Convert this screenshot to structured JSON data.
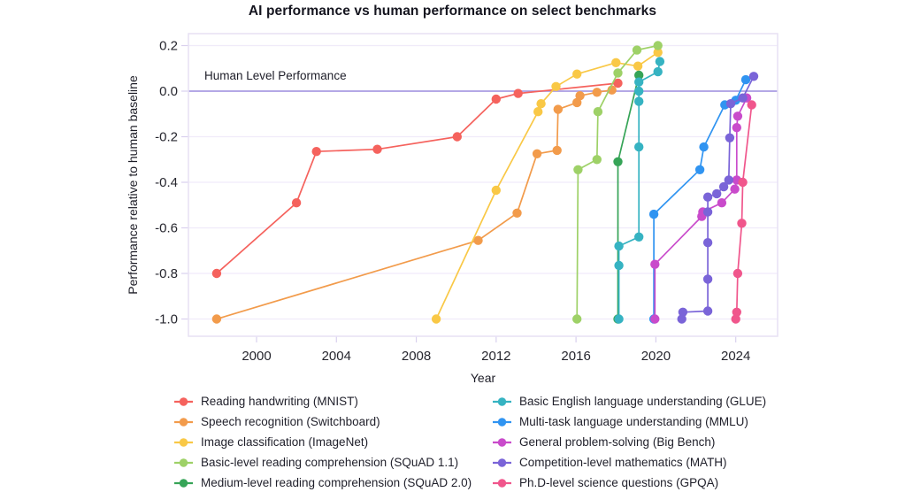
{
  "chart_data": {
    "type": "line",
    "title": "AI performance vs human performance on select benchmarks",
    "xlabel": "Year",
    "ylabel": "Performance relative to human baseline",
    "annotation": "Human Level Performance",
    "x_ticks": [
      2000,
      2004,
      2008,
      2012,
      2016,
      2020,
      2024
    ],
    "y_ticks": [
      0.2,
      0,
      -0.2,
      -0.4,
      -0.6,
      -0.8,
      -1
    ],
    "xlim": [
      1996.6,
      2026.1
    ],
    "ylim": [
      -1.08,
      0.25
    ],
    "grid": "horizontal",
    "legend_position": "bottom",
    "human_baseline": 0,
    "colors": {
      "grid": "#f0ebf9",
      "baseline": "#a99ce2",
      "border": "#e7e1f4",
      "tick": "#d9d0ee"
    },
    "series": [
      {
        "id": "mnist",
        "name": "Reading handwriting (MNIST)",
        "color": "#f5625d",
        "points": [
          [
            1998,
            -0.8
          ],
          [
            2002,
            -0.49
          ],
          [
            2003,
            -0.265
          ],
          [
            2006.05,
            -0.255
          ],
          [
            2010.05,
            -0.2
          ],
          [
            2012,
            -0.035
          ],
          [
            2013.1,
            -0.01
          ],
          [
            2018.1,
            0.035
          ]
        ]
      },
      {
        "id": "switchboard",
        "name": "Speech recognition (Switchboard)",
        "color": "#f29b4b",
        "points": [
          [
            1998,
            -1.0
          ],
          [
            2011.1,
            -0.655
          ],
          [
            2013.05,
            -0.535
          ],
          [
            2014.05,
            -0.275
          ],
          [
            2015.05,
            -0.26
          ],
          [
            2015.1,
            -0.08
          ],
          [
            2016.05,
            -0.05
          ],
          [
            2016.2,
            -0.02
          ],
          [
            2017.05,
            -0.005
          ],
          [
            2017.8,
            0.005
          ]
        ]
      },
      {
        "id": "imagenet",
        "name": "Image classification (ImageNet)",
        "color": "#f9c846",
        "points": [
          [
            2009,
            -1.0
          ],
          [
            2012,
            -0.435
          ],
          [
            2014.1,
            -0.09
          ],
          [
            2014.25,
            -0.055
          ],
          [
            2015,
            0.02
          ],
          [
            2016.05,
            0.075
          ],
          [
            2018,
            0.125
          ],
          [
            2019.1,
            0.11
          ],
          [
            2020.1,
            0.17
          ]
        ]
      },
      {
        "id": "squad11",
        "name": "Basic-level reading comprehension (SQuAD 1.1)",
        "color": "#9ed167",
        "points": [
          [
            2016.05,
            -1.0
          ],
          [
            2016.1,
            -0.345
          ],
          [
            2017.05,
            -0.3
          ],
          [
            2017.1,
            -0.09
          ],
          [
            2018.1,
            0.08
          ],
          [
            2019.05,
            0.18
          ],
          [
            2020.1,
            0.2
          ]
        ]
      },
      {
        "id": "squad20",
        "name": "Medium-level reading comprehension (SQuAD 2.0)",
        "color": "#36a457",
        "points": [
          [
            2018.1,
            -1.0
          ],
          [
            2018.1,
            -0.31
          ],
          [
            2019.15,
            0.07
          ]
        ]
      },
      {
        "id": "glue",
        "name": "Basic English language understanding (GLUE)",
        "color": "#36b3c2",
        "points": [
          [
            2018.15,
            -1.0
          ],
          [
            2018.15,
            -0.765
          ],
          [
            2018.15,
            -0.68
          ],
          [
            2019.15,
            -0.64
          ],
          [
            2019.15,
            -0.245
          ],
          [
            2019.15,
            -0.045
          ],
          [
            2019.15,
            0.0
          ],
          [
            2019.15,
            0.04
          ],
          [
            2020.1,
            0.085
          ],
          [
            2020.2,
            0.13
          ]
        ]
      },
      {
        "id": "mmlu",
        "name": "Multi-task language understanding (MMLU)",
        "color": "#3094f1",
        "points": [
          [
            2019.9,
            -1.0
          ],
          [
            2019.9,
            -0.54
          ],
          [
            2022.2,
            -0.345
          ],
          [
            2022.4,
            -0.245
          ],
          [
            2023.45,
            -0.06
          ],
          [
            2024,
            -0.04
          ],
          [
            2024.5,
            0.05
          ]
        ]
      },
      {
        "id": "bigbench",
        "name": "General problem-solving (Big Bench)",
        "color": "#c94bcb",
        "points": [
          [
            2019.95,
            -1.0
          ],
          [
            2019.95,
            -0.76
          ],
          [
            2022.3,
            -0.55
          ],
          [
            2022.35,
            -0.53
          ],
          [
            2023.3,
            -0.49
          ],
          [
            2023.95,
            -0.43
          ],
          [
            2024.05,
            -0.39
          ],
          [
            2024.05,
            -0.16
          ],
          [
            2024.1,
            -0.11
          ],
          [
            2024.55,
            -0.03
          ]
        ]
      },
      {
        "id": "math",
        "name": "Competition-level mathematics (MATH)",
        "color": "#7a64d8",
        "points": [
          [
            2021.3,
            -1.0
          ],
          [
            2021.35,
            -0.97
          ],
          [
            2022.6,
            -0.965
          ],
          [
            2022.6,
            -0.825
          ],
          [
            2022.6,
            -0.665
          ],
          [
            2022.6,
            -0.53
          ],
          [
            2022.6,
            -0.465
          ],
          [
            2023.05,
            -0.45
          ],
          [
            2023.4,
            -0.42
          ],
          [
            2023.65,
            -0.39
          ],
          [
            2023.7,
            -0.205
          ],
          [
            2023.75,
            -0.055
          ],
          [
            2024.35,
            -0.03
          ],
          [
            2024.9,
            0.065
          ]
        ]
      },
      {
        "id": "gpqa",
        "name": "Ph.D-level science questions (GPQA)",
        "color": "#f0568c",
        "points": [
          [
            2024,
            -1.0
          ],
          [
            2024.05,
            -0.97
          ],
          [
            2024.1,
            -0.8
          ],
          [
            2024.3,
            -0.58
          ],
          [
            2024.35,
            -0.4
          ],
          [
            2024.8,
            -0.06
          ]
        ]
      }
    ]
  }
}
